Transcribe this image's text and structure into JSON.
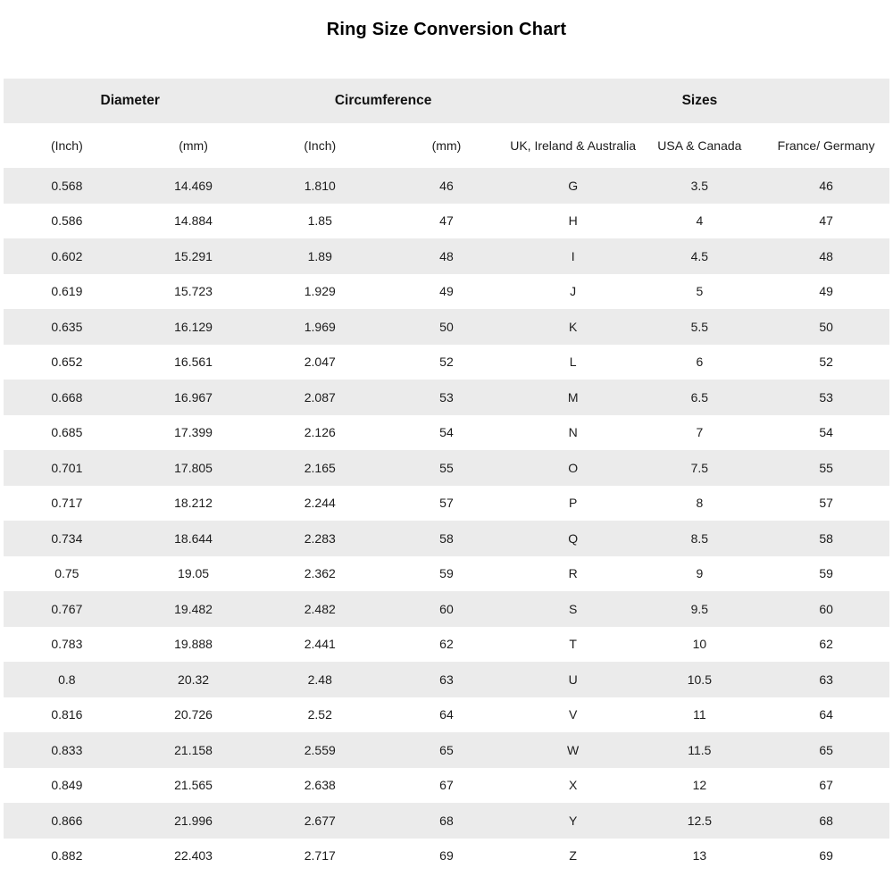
{
  "page": {
    "title": "Ring Size Conversion Chart"
  },
  "colors": {
    "stripe": "#ebebeb",
    "text": "#1c1c1c",
    "background": "#ffffff"
  },
  "chart_data": {
    "type": "table",
    "title": "Ring Size Conversion Chart",
    "layout": {
      "striped": true,
      "first_data_row_shaded": true,
      "column_count": 7,
      "row_count": 20
    },
    "column_groups": [
      {
        "label": "Diameter",
        "span": "2"
      },
      {
        "label": "Circumference",
        "span": "2"
      },
      {
        "label": "Sizes",
        "span": "3"
      }
    ],
    "columns": [
      "(Inch)",
      "(mm)",
      "(Inch)",
      "(mm)",
      "UK, Ireland & Australia",
      "USA & Canada",
      "France/ Germany"
    ],
    "rows": [
      [
        "0.568",
        "14.469",
        "1.810",
        "46",
        "G",
        "3.5",
        "46"
      ],
      [
        "0.586",
        "14.884",
        "1.85",
        "47",
        "H",
        "4",
        "47"
      ],
      [
        "0.602",
        "15.291",
        "1.89",
        "48",
        "I",
        "4.5",
        "48"
      ],
      [
        "0.619",
        "15.723",
        "1.929",
        "49",
        "J",
        "5",
        "49"
      ],
      [
        "0.635",
        "16.129",
        "1.969",
        "50",
        "K",
        "5.5",
        "50"
      ],
      [
        "0.652",
        "16.561",
        "2.047",
        "52",
        "L",
        "6",
        "52"
      ],
      [
        "0.668",
        "16.967",
        "2.087",
        "53",
        "M",
        "6.5",
        "53"
      ],
      [
        "0.685",
        "17.399",
        "2.126",
        "54",
        "N",
        "7",
        "54"
      ],
      [
        "0.701",
        "17.805",
        "2.165",
        "55",
        "O",
        "7.5",
        "55"
      ],
      [
        "0.717",
        "18.212",
        "2.244",
        "57",
        "P",
        "8",
        "57"
      ],
      [
        "0.734",
        "18.644",
        "2.283",
        "58",
        "Q",
        "8.5",
        "58"
      ],
      [
        "0.75",
        "19.05",
        "2.362",
        "59",
        "R",
        "9",
        "59"
      ],
      [
        "0.767",
        "19.482",
        "2.482",
        "60",
        "S",
        "9.5",
        "60"
      ],
      [
        "0.783",
        "19.888",
        "2.441",
        "62",
        "T",
        "10",
        "62"
      ],
      [
        "0.8",
        "20.32",
        "2.48",
        "63",
        "U",
        "10.5",
        "63"
      ],
      [
        "0.816",
        "20.726",
        "2.52",
        "64",
        "V",
        "11",
        "64"
      ],
      [
        "0.833",
        "21.158",
        "2.559",
        "65",
        "W",
        "11.5",
        "65"
      ],
      [
        "0.849",
        "21.565",
        "2.638",
        "67",
        "X",
        "12",
        "67"
      ],
      [
        "0.866",
        "21.996",
        "2.677",
        "68",
        "Y",
        "12.5",
        "68"
      ],
      [
        "0.882",
        "22.403",
        "2.717",
        "69",
        "Z",
        "13",
        "69"
      ]
    ]
  }
}
